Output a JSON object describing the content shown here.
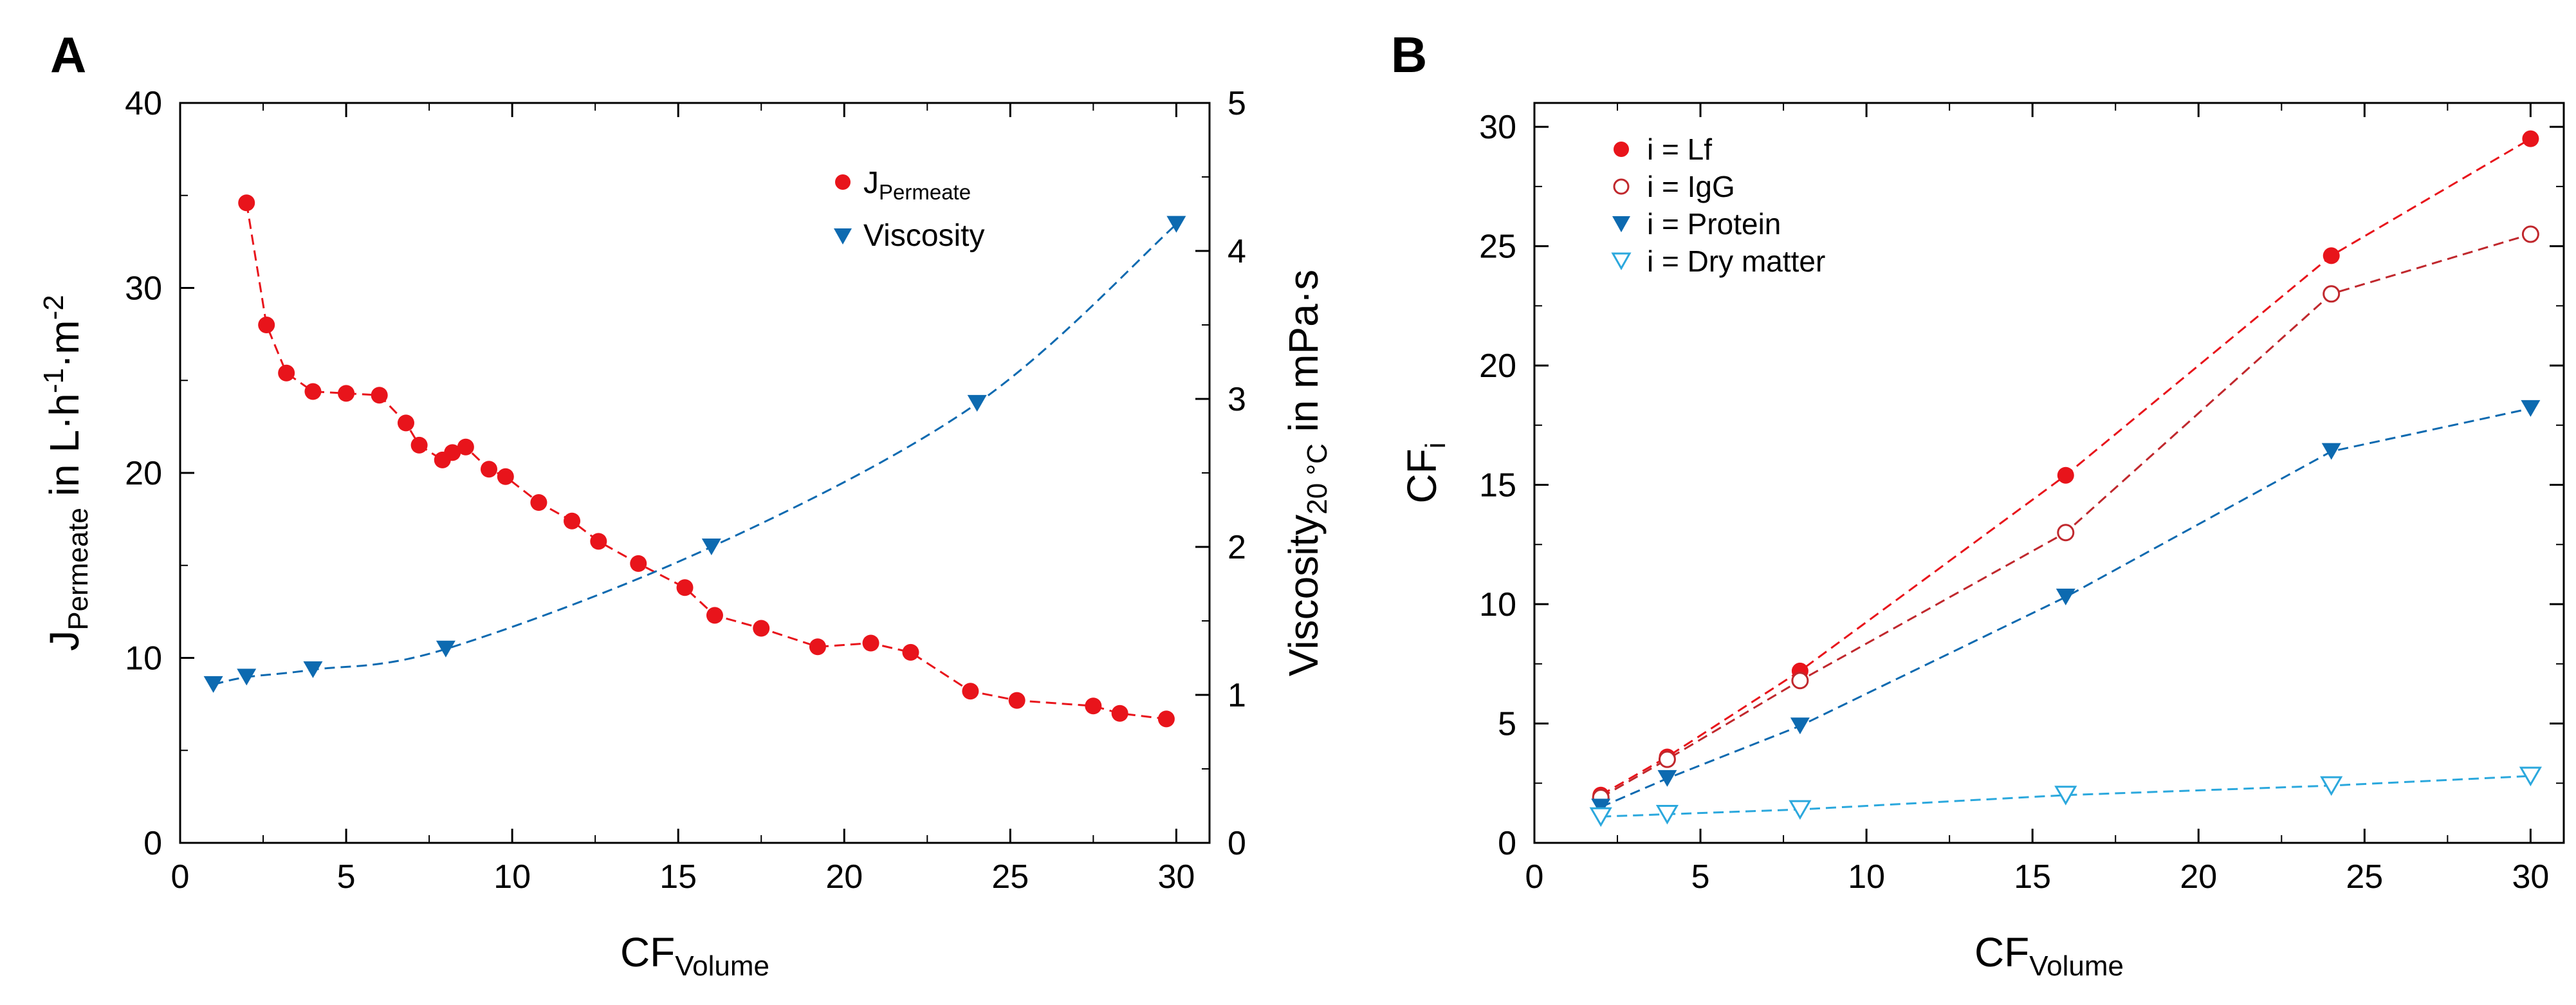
{
  "colors": {
    "red": "#e8141b",
    "blue": "#0d6ab0",
    "light_blue": "#2ba8dd",
    "axis": "#000000"
  },
  "chart_data": [
    {
      "panel_label": "A",
      "type": "scatter",
      "xlabel": {
        "main": "CF",
        "sub": "Volume"
      },
      "ylabel_left": {
        "main": "J",
        "sub": "Permeate",
        "rest": " in L·h",
        "sup1": "-1",
        "mid": "·m",
        "sup2": "-2"
      },
      "ylabel_right": {
        "main": "Viscosity",
        "sub": "20 °C",
        "rest": " in mPa·s"
      },
      "xlim": [
        0,
        31
      ],
      "ylim_left": [
        0,
        40
      ],
      "ylim_right": [
        0,
        5
      ],
      "x_ticks": [
        0,
        5,
        10,
        15,
        20,
        25,
        30
      ],
      "y_ticks_left": [
        0,
        10,
        20,
        30,
        40
      ],
      "y_ticks_right": [
        0,
        1,
        2,
        3,
        4,
        5
      ],
      "series": [
        {
          "name": "J",
          "name_sub": "Permeate",
          "axis": "left",
          "marker": "circle-filled",
          "color": "#e8141b",
          "x": [
            2.0,
            2.6,
            3.2,
            4.0,
            5.0,
            6.0,
            6.8,
            7.2,
            7.9,
            8.2,
            8.6,
            9.3,
            9.8,
            10.8,
            11.8,
            12.6,
            13.8,
            15.2,
            16.1,
            17.5,
            19.2,
            20.8,
            22.0,
            23.8,
            25.2,
            27.5,
            28.3,
            29.7
          ],
          "y": [
            34.6,
            28.0,
            25.4,
            24.4,
            24.3,
            24.2,
            22.7,
            21.5,
            20.7,
            21.1,
            21.4,
            20.2,
            19.8,
            18.4,
            17.4,
            16.3,
            15.1,
            13.8,
            12.3,
            11.6,
            10.6,
            10.8,
            10.3,
            8.2,
            7.7,
            7.4,
            7.0,
            6.7
          ]
        },
        {
          "name": "Viscosity",
          "axis": "right",
          "marker": "triangle-down-filled",
          "color": "#0d6ab0",
          "x": [
            1.0,
            2.0,
            4.0,
            8.0,
            16.0,
            24.0,
            30.0
          ],
          "y": [
            1.07,
            1.12,
            1.17,
            1.31,
            2.0,
            2.97,
            4.18
          ]
        }
      ]
    },
    {
      "panel_label": "B",
      "type": "scatter",
      "xlabel": {
        "main": "CF",
        "sub": "Volume"
      },
      "ylabel": {
        "main": "CF",
        "sub": "i"
      },
      "xlim": [
        0,
        31
      ],
      "ylim": [
        0,
        31
      ],
      "x_ticks": [
        0,
        5,
        10,
        15,
        20,
        25,
        30
      ],
      "y_ticks": [
        0,
        5,
        10,
        15,
        20,
        25,
        30
      ],
      "series": [
        {
          "name": "i = Lf",
          "marker": "circle-filled",
          "color": "#e8141b",
          "x": [
            2,
            4,
            8,
            16,
            24,
            30
          ],
          "y": [
            2.0,
            3.6,
            7.2,
            15.4,
            24.6,
            29.5
          ]
        },
        {
          "name": "i = IgG",
          "marker": "circle-open",
          "color": "#c0282d",
          "x": [
            2,
            4,
            8,
            16,
            24,
            30
          ],
          "y": [
            1.9,
            3.5,
            6.8,
            13.0,
            23.0,
            25.5
          ]
        },
        {
          "name": "i = Protein",
          "marker": "triangle-down-filled",
          "color": "#0d6ab0",
          "x": [
            2,
            4,
            8,
            16,
            24,
            30
          ],
          "y": [
            1.5,
            2.7,
            4.9,
            10.3,
            16.4,
            18.2
          ]
        },
        {
          "name": "i = Dry matter",
          "marker": "triangle-down-open",
          "color": "#2ba8dd",
          "x": [
            2,
            4,
            8,
            16,
            24,
            30
          ],
          "y": [
            1.1,
            1.2,
            1.4,
            2.0,
            2.4,
            2.8
          ]
        }
      ]
    }
  ]
}
